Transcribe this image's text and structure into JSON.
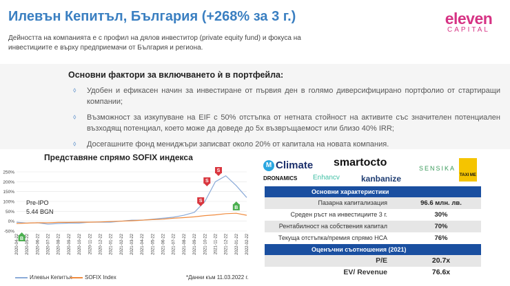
{
  "header": {
    "title": "Илевън Кепитъл, България (+268% за 3 г.)",
    "logo_main": "eleven",
    "logo_sub": "CAPITAL",
    "description": "Дейността на компанията е с профил на дялов инвеститор (private equity fund) и фокуса на инвестициите е върху предприемачи от България и региона."
  },
  "factors": {
    "title": "Основни фактори за включването ѝ в портфейла:",
    "items": [
      "Удобен и ефикасен начин за инвестиране от първия ден в голямо диверсифицирано портфолио от стартиращи компании;",
      "Възможност за изкупуване на EIF с 50% отстъпка от нетната стойност на активите със значителен потенциален възходящ потенциал, което може да доведе до 5х възвръщаемост или близо 40% IRR;",
      "Досегашните фонд мениджъри записват около 20% от капитала на новата компания."
    ],
    "bullet_glyph": "⬨"
  },
  "chart_data": {
    "type": "line",
    "title": "Представяне спрямо SOFIX индекса",
    "ylim": [
      -50,
      250
    ],
    "y_ticks": [
      "250%",
      "200%",
      "150%",
      "100%",
      "50%",
      "0%",
      "-50%"
    ],
    "x": [
      "2020-04-22",
      "2020-05-22",
      "2020-06-22",
      "2020-07-22",
      "2020-08-22",
      "2020-09-22",
      "2020-10-22",
      "2020-11-22",
      "2020-12-22",
      "2021-01-22",
      "2021-02-22",
      "2021-03-22",
      "2021-04-22",
      "2021-05-22",
      "2021-06-22",
      "2021-07-22",
      "2021-08-22",
      "2021-09-22",
      "2021-10-22",
      "2021-11-22",
      "2021-12-22",
      "2022-01-22",
      "2022-02-22"
    ],
    "series": [
      {
        "name": "Илевън Кепитъл",
        "color": "#8aaad8",
        "values": [
          -5,
          -10,
          -8,
          -15,
          -12,
          -10,
          -10,
          -5,
          -5,
          -5,
          0,
          5,
          5,
          10,
          15,
          20,
          30,
          45,
          100,
          200,
          230,
          180,
          120
        ]
      },
      {
        "name": "SOFIX Index",
        "color": "#f08a3c",
        "values": [
          -12,
          -10,
          -8,
          -8,
          -6,
          -6,
          -5,
          -5,
          -4,
          -2,
          0,
          2,
          5,
          8,
          10,
          15,
          18,
          22,
          28,
          32,
          38,
          40,
          30
        ]
      }
    ],
    "annotations": [
      {
        "text": "Pre-IPO",
        "color": "#222"
      },
      {
        "text": "5.44 BGN",
        "color": "#222"
      },
      {
        "text": "B",
        "color": "#4caf50"
      },
      {
        "text": "S",
        "color": "#d9363e"
      },
      {
        "text": "S",
        "color": "#d9363e"
      },
      {
        "text": "S",
        "color": "#d9363e"
      },
      {
        "text": "B",
        "color": "#4caf50"
      }
    ],
    "note": "*Данни към 11.03.2022 г."
  },
  "portfolio_logos": [
    {
      "text": "Climate",
      "color": "#1b2f6b"
    },
    {
      "text": "smartocto",
      "color": "#111"
    },
    {
      "text": "SENSIKA",
      "color": "#3a9a5b"
    },
    {
      "text": "TAXI ME",
      "color": "#111"
    },
    {
      "text": "DRONAMICS",
      "color": "#111"
    },
    {
      "text": "Enhancv",
      "color": "#3fbfa4"
    },
    {
      "text": "kanbanize",
      "color": "#1e3c72"
    }
  ],
  "characteristics": {
    "title": "Основни характеристики",
    "rows": [
      {
        "label": "Пазарна капитализация",
        "value": "96.6 млн. лв."
      },
      {
        "label": "Среден ръст на инвестициите 3 г.",
        "value": "30%"
      },
      {
        "label": "Рентабилност на собствения капитал",
        "value": "70%"
      },
      {
        "label": "Текуща отстъпка/премия спрямо НСА",
        "value": "76%"
      }
    ]
  },
  "ratios": {
    "title": "Оценъчни съотношения (2021)",
    "rows": [
      {
        "label": "P/E",
        "value": "20.7x"
      },
      {
        "label": "EV/ Revenue",
        "value": "76.6x"
      }
    ]
  },
  "colors": {
    "title_blue": "#3a7fc1",
    "brand_pink": "#d63384",
    "table_header": "#1a4fa0"
  }
}
